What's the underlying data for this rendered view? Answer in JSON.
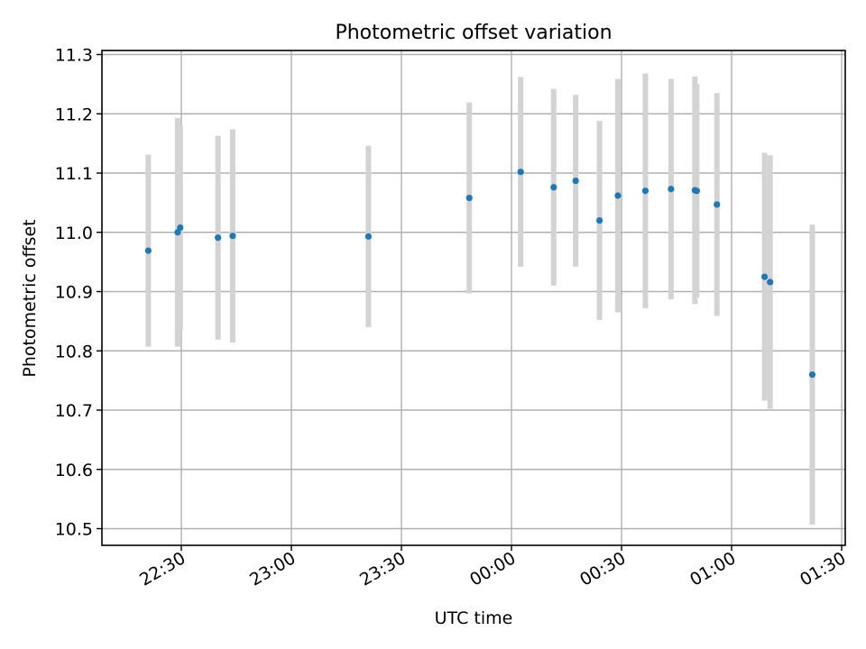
{
  "chart_data": {
    "type": "scatter",
    "title": "Photometric offset variation",
    "xlabel": "UTC time",
    "ylabel": "Photometric offset",
    "x_ticks": [
      "22:30",
      "23:00",
      "23:30",
      "00:00",
      "00:30",
      "01:00",
      "01:30"
    ],
    "y_ticks": [
      "10.5",
      "10.6",
      "10.7",
      "10.8",
      "10.9",
      "11.0",
      "11.1",
      "11.2",
      "11.3"
    ],
    "grid": true,
    "error_bar_color": "#d3d3d3",
    "point_color": "#1f77b4",
    "points": [
      {
        "x": "22:21",
        "y": 10.969,
        "err": 0.162
      },
      {
        "x": "22:29",
        "y": 11.0,
        "err": 0.193
      },
      {
        "x": "22:29.7",
        "y": 11.008,
        "err": 0.173
      },
      {
        "x": "22:40",
        "y": 10.991,
        "err": 0.172
      },
      {
        "x": "22:44",
        "y": 10.994,
        "err": 0.18
      },
      {
        "x": "23:21",
        "y": 10.993,
        "err": 0.153
      },
      {
        "x": "23:48.5",
        "y": 11.058,
        "err": 0.161
      },
      {
        "x": "00:02.5",
        "y": 11.102,
        "err": 0.16
      },
      {
        "x": "00:11.5",
        "y": 11.076,
        "err": 0.166
      },
      {
        "x": "00:17.5",
        "y": 11.087,
        "err": 0.145
      },
      {
        "x": "00:24",
        "y": 11.02,
        "err": 0.168
      },
      {
        "x": "00:29",
        "y": 11.062,
        "err": 0.197
      },
      {
        "x": "00:36.5",
        "y": 11.07,
        "err": 0.198
      },
      {
        "x": "00:43.5",
        "y": 11.073,
        "err": 0.186
      },
      {
        "x": "00:50",
        "y": 11.071,
        "err": 0.192
      },
      {
        "x": "00:50.5",
        "y": 11.07,
        "err": 0.18
      },
      {
        "x": "00:56",
        "y": 11.047,
        "err": 0.188
      },
      {
        "x": "01:09",
        "y": 10.925,
        "err": 0.209
      },
      {
        "x": "01:10.5",
        "y": 10.916,
        "err": 0.214
      },
      {
        "x": "01:22",
        "y": 10.76,
        "err": 0.253
      }
    ]
  }
}
